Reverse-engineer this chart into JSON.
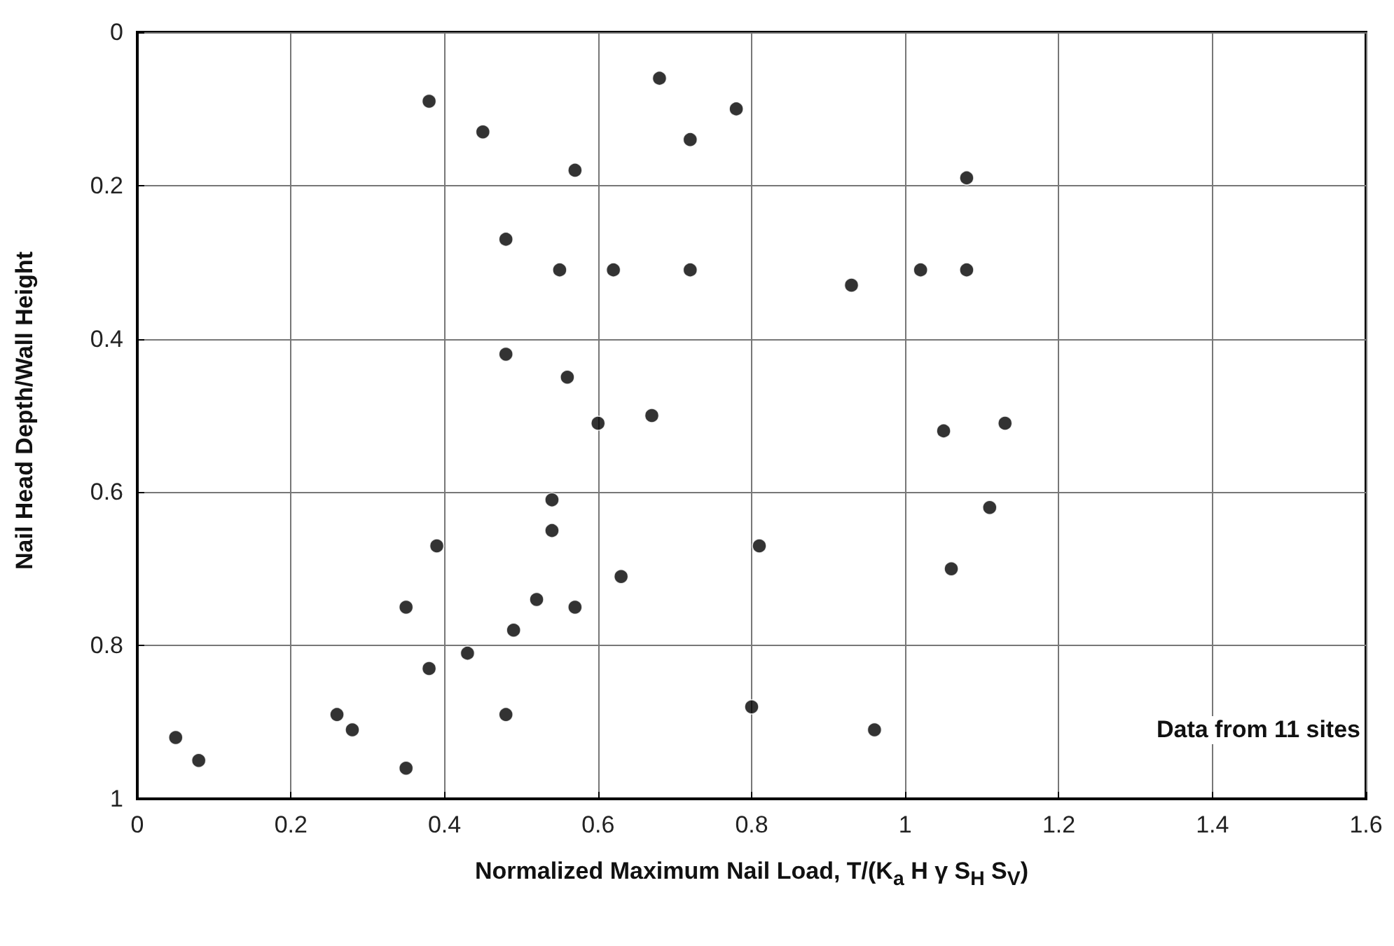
{
  "chart_data": {
    "type": "scatter",
    "xlabel": "Normalized Maximum Nail Load, T/(K$_{a}$ H γ S$_{H}$ S$_{V}$)",
    "ylabel": "Nail Head Depth/Wall Height",
    "annotations": [
      "Data from 11 sites"
    ],
    "x": [
      0.38,
      0.45,
      0.57,
      0.68,
      0.78,
      0.72,
      0.48,
      0.55,
      0.62,
      0.72,
      0.48,
      0.56,
      0.6,
      0.67,
      1.08,
      0.93,
      1.02,
      1.08,
      1.05,
      1.13,
      0.54,
      0.54,
      0.39,
      0.63,
      0.52,
      0.57,
      0.35,
      0.49,
      0.43,
      0.38,
      0.26,
      0.28,
      0.48,
      0.05,
      0.08,
      0.35,
      0.81,
      0.8,
      0.96,
      1.11,
      1.06
    ],
    "values": [
      0.09,
      0.13,
      0.18,
      0.06,
      0.1,
      0.14,
      0.27,
      0.31,
      0.31,
      0.31,
      0.42,
      0.45,
      0.51,
      0.5,
      0.19,
      0.33,
      0.31,
      0.31,
      0.52,
      0.51,
      0.61,
      0.65,
      0.67,
      0.71,
      0.74,
      0.75,
      0.75,
      0.78,
      0.81,
      0.83,
      0.89,
      0.91,
      0.89,
      0.92,
      0.95,
      0.96,
      0.67,
      0.88,
      0.91,
      0.62,
      0.7
    ],
    "color": "#000000",
    "marker": "circle",
    "xlim": [
      0,
      1.6
    ],
    "xticks": [
      0,
      0.2,
      0.4,
      0.6,
      0.8,
      1,
      1.2,
      1.4,
      1.6
    ],
    "ylim": [
      1,
      0
    ],
    "yticks": [
      0,
      0.2,
      0.4,
      0.6,
      0.8,
      1
    ],
    "grid": true
  }
}
